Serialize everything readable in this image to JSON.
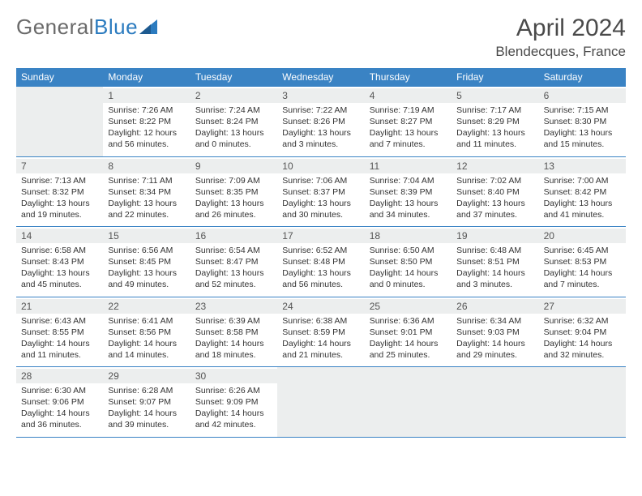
{
  "logo": {
    "part1": "General",
    "part2": "Blue"
  },
  "title": "April 2024",
  "location": "Blendecques, France",
  "title_fontsize": 30,
  "location_fontsize": 17,
  "header_color": "#3a83c4",
  "header_text_color": "#ffffff",
  "daynum_bg": "#eceeee",
  "border_color": "#3a83c4",
  "text_color": "#333333",
  "body_fontsize": 10.5,
  "weekdays": [
    "Sunday",
    "Monday",
    "Tuesday",
    "Wednesday",
    "Thursday",
    "Friday",
    "Saturday"
  ],
  "weeks": [
    [
      {
        "num": "",
        "empty": true
      },
      {
        "num": "1",
        "sunrise": "Sunrise: 7:26 AM",
        "sunset": "Sunset: 8:22 PM",
        "day1": "Daylight: 12 hours",
        "day2": "and 56 minutes."
      },
      {
        "num": "2",
        "sunrise": "Sunrise: 7:24 AM",
        "sunset": "Sunset: 8:24 PM",
        "day1": "Daylight: 13 hours",
        "day2": "and 0 minutes."
      },
      {
        "num": "3",
        "sunrise": "Sunrise: 7:22 AM",
        "sunset": "Sunset: 8:26 PM",
        "day1": "Daylight: 13 hours",
        "day2": "and 3 minutes."
      },
      {
        "num": "4",
        "sunrise": "Sunrise: 7:19 AM",
        "sunset": "Sunset: 8:27 PM",
        "day1": "Daylight: 13 hours",
        "day2": "and 7 minutes."
      },
      {
        "num": "5",
        "sunrise": "Sunrise: 7:17 AM",
        "sunset": "Sunset: 8:29 PM",
        "day1": "Daylight: 13 hours",
        "day2": "and 11 minutes."
      },
      {
        "num": "6",
        "sunrise": "Sunrise: 7:15 AM",
        "sunset": "Sunset: 8:30 PM",
        "day1": "Daylight: 13 hours",
        "day2": "and 15 minutes."
      }
    ],
    [
      {
        "num": "7",
        "sunrise": "Sunrise: 7:13 AM",
        "sunset": "Sunset: 8:32 PM",
        "day1": "Daylight: 13 hours",
        "day2": "and 19 minutes."
      },
      {
        "num": "8",
        "sunrise": "Sunrise: 7:11 AM",
        "sunset": "Sunset: 8:34 PM",
        "day1": "Daylight: 13 hours",
        "day2": "and 22 minutes."
      },
      {
        "num": "9",
        "sunrise": "Sunrise: 7:09 AM",
        "sunset": "Sunset: 8:35 PM",
        "day1": "Daylight: 13 hours",
        "day2": "and 26 minutes."
      },
      {
        "num": "10",
        "sunrise": "Sunrise: 7:06 AM",
        "sunset": "Sunset: 8:37 PM",
        "day1": "Daylight: 13 hours",
        "day2": "and 30 minutes."
      },
      {
        "num": "11",
        "sunrise": "Sunrise: 7:04 AM",
        "sunset": "Sunset: 8:39 PM",
        "day1": "Daylight: 13 hours",
        "day2": "and 34 minutes."
      },
      {
        "num": "12",
        "sunrise": "Sunrise: 7:02 AM",
        "sunset": "Sunset: 8:40 PM",
        "day1": "Daylight: 13 hours",
        "day2": "and 37 minutes."
      },
      {
        "num": "13",
        "sunrise": "Sunrise: 7:00 AM",
        "sunset": "Sunset: 8:42 PM",
        "day1": "Daylight: 13 hours",
        "day2": "and 41 minutes."
      }
    ],
    [
      {
        "num": "14",
        "sunrise": "Sunrise: 6:58 AM",
        "sunset": "Sunset: 8:43 PM",
        "day1": "Daylight: 13 hours",
        "day2": "and 45 minutes."
      },
      {
        "num": "15",
        "sunrise": "Sunrise: 6:56 AM",
        "sunset": "Sunset: 8:45 PM",
        "day1": "Daylight: 13 hours",
        "day2": "and 49 minutes."
      },
      {
        "num": "16",
        "sunrise": "Sunrise: 6:54 AM",
        "sunset": "Sunset: 8:47 PM",
        "day1": "Daylight: 13 hours",
        "day2": "and 52 minutes."
      },
      {
        "num": "17",
        "sunrise": "Sunrise: 6:52 AM",
        "sunset": "Sunset: 8:48 PM",
        "day1": "Daylight: 13 hours",
        "day2": "and 56 minutes."
      },
      {
        "num": "18",
        "sunrise": "Sunrise: 6:50 AM",
        "sunset": "Sunset: 8:50 PM",
        "day1": "Daylight: 14 hours",
        "day2": "and 0 minutes."
      },
      {
        "num": "19",
        "sunrise": "Sunrise: 6:48 AM",
        "sunset": "Sunset: 8:51 PM",
        "day1": "Daylight: 14 hours",
        "day2": "and 3 minutes."
      },
      {
        "num": "20",
        "sunrise": "Sunrise: 6:45 AM",
        "sunset": "Sunset: 8:53 PM",
        "day1": "Daylight: 14 hours",
        "day2": "and 7 minutes."
      }
    ],
    [
      {
        "num": "21",
        "sunrise": "Sunrise: 6:43 AM",
        "sunset": "Sunset: 8:55 PM",
        "day1": "Daylight: 14 hours",
        "day2": "and 11 minutes."
      },
      {
        "num": "22",
        "sunrise": "Sunrise: 6:41 AM",
        "sunset": "Sunset: 8:56 PM",
        "day1": "Daylight: 14 hours",
        "day2": "and 14 minutes."
      },
      {
        "num": "23",
        "sunrise": "Sunrise: 6:39 AM",
        "sunset": "Sunset: 8:58 PM",
        "day1": "Daylight: 14 hours",
        "day2": "and 18 minutes."
      },
      {
        "num": "24",
        "sunrise": "Sunrise: 6:38 AM",
        "sunset": "Sunset: 8:59 PM",
        "day1": "Daylight: 14 hours",
        "day2": "and 21 minutes."
      },
      {
        "num": "25",
        "sunrise": "Sunrise: 6:36 AM",
        "sunset": "Sunset: 9:01 PM",
        "day1": "Daylight: 14 hours",
        "day2": "and 25 minutes."
      },
      {
        "num": "26",
        "sunrise": "Sunrise: 6:34 AM",
        "sunset": "Sunset: 9:03 PM",
        "day1": "Daylight: 14 hours",
        "day2": "and 29 minutes."
      },
      {
        "num": "27",
        "sunrise": "Sunrise: 6:32 AM",
        "sunset": "Sunset: 9:04 PM",
        "day1": "Daylight: 14 hours",
        "day2": "and 32 minutes."
      }
    ],
    [
      {
        "num": "28",
        "sunrise": "Sunrise: 6:30 AM",
        "sunset": "Sunset: 9:06 PM",
        "day1": "Daylight: 14 hours",
        "day2": "and 36 minutes."
      },
      {
        "num": "29",
        "sunrise": "Sunrise: 6:28 AM",
        "sunset": "Sunset: 9:07 PM",
        "day1": "Daylight: 14 hours",
        "day2": "and 39 minutes."
      },
      {
        "num": "30",
        "sunrise": "Sunrise: 6:26 AM",
        "sunset": "Sunset: 9:09 PM",
        "day1": "Daylight: 14 hours",
        "day2": "and 42 minutes."
      },
      {
        "num": "",
        "empty": true
      },
      {
        "num": "",
        "empty": true
      },
      {
        "num": "",
        "empty": true
      },
      {
        "num": "",
        "empty": true
      }
    ]
  ]
}
